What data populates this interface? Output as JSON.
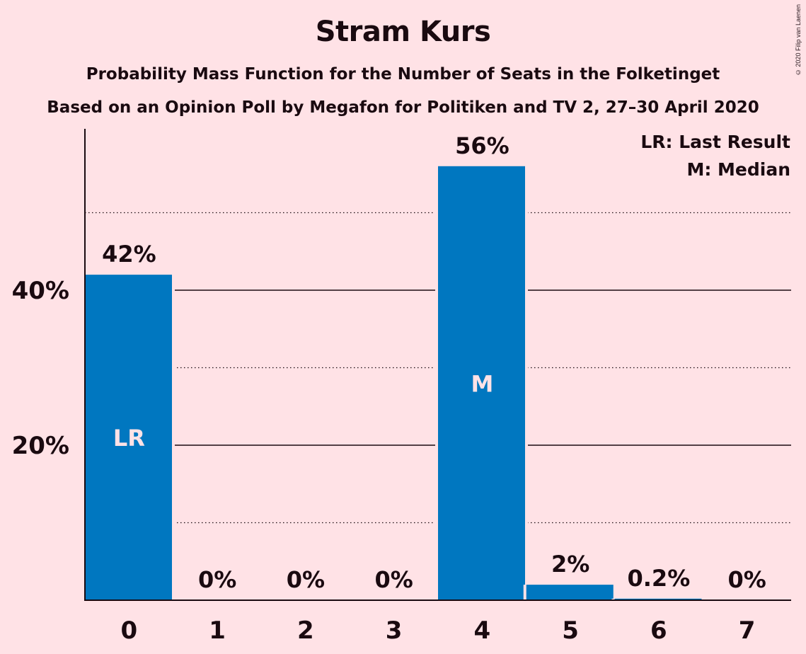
{
  "chart_data": {
    "type": "bar",
    "title": "Stram Kurs",
    "subtitle": "Probability Mass Function for the Number of Seats in the Folketinget",
    "subtitle2": "Based on an Opinion Poll by Megafon for Politiken and TV 2, 27–30 April 2020",
    "categories": [
      "0",
      "1",
      "2",
      "3",
      "4",
      "5",
      "6",
      "7"
    ],
    "values": [
      42,
      0,
      0,
      0,
      56,
      2,
      0.2,
      0
    ],
    "value_labels": [
      "42%",
      "0%",
      "0%",
      "0%",
      "56%",
      "2%",
      "0.2%",
      "0%"
    ],
    "bar_markers": [
      "LR",
      "",
      "",
      "",
      "M",
      "",
      "",
      ""
    ],
    "y_ticks": [
      20,
      40
    ],
    "y_tick_labels": [
      "20%",
      "40%"
    ],
    "y_minor_ticks": [
      10,
      30,
      50
    ],
    "ylim": [
      0,
      60
    ],
    "legend": [
      "LR: Last Result",
      "M: Median"
    ],
    "legend_position": "top-right",
    "grid": true,
    "bar_color": "#0077C0",
    "copyright": "© 2020 Filip van Laenen"
  }
}
